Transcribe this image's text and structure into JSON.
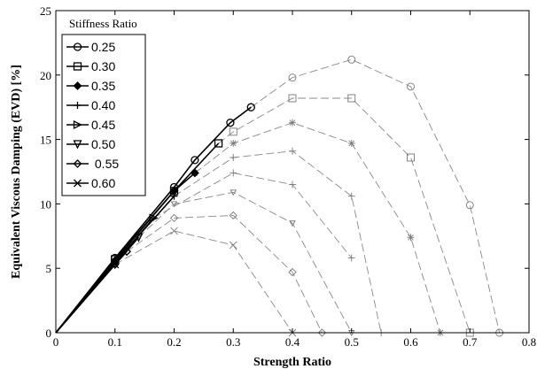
{
  "chart_data": {
    "type": "line",
    "xlabel": "Strength Ratio",
    "ylabel": "Equivalent Viscous Damping  (EVD)  [%]",
    "xlim": [
      0,
      0.8
    ],
    "ylim": [
      0,
      25
    ],
    "xticks": [
      "0",
      "0.1",
      "0.2",
      "0.3",
      "0.4",
      "0.5",
      "0.6",
      "0.7",
      "0.8"
    ],
    "yticks": [
      "0",
      "5",
      "10",
      "15",
      "20",
      "25"
    ],
    "legend_title": "Stiffness Ratio",
    "legend_position": "top-left",
    "series": [
      {
        "name": "0.25",
        "marker": "circle",
        "style": "solid",
        "x": [
          0,
          0.1,
          0.2,
          0.235,
          0.295,
          0.33
        ],
        "y": [
          0,
          5.8,
          11.3,
          13.4,
          16.3,
          17.5
        ]
      },
      {
        "name": "0.30",
        "marker": "square",
        "style": "solid",
        "x": [
          0,
          0.1,
          0.2,
          0.275
        ],
        "y": [
          0,
          5.7,
          11.0,
          14.7
        ]
      },
      {
        "name": "0.35",
        "marker": "diamond-filled",
        "style": "solid",
        "x": [
          0,
          0.1,
          0.2,
          0.235
        ],
        "y": [
          0,
          5.6,
          11.0,
          12.4
        ]
      },
      {
        "name": "0.40",
        "marker": "plus",
        "style": "solid",
        "x": [
          0,
          0.1,
          0.2
        ],
        "y": [
          0,
          5.5,
          10.6
        ]
      },
      {
        "name": "0.45",
        "marker": "triangle-right",
        "style": "solid",
        "x": [
          0,
          0.1,
          0.165
        ],
        "y": [
          0,
          5.4,
          8.9
        ]
      },
      {
        "name": "0.50",
        "marker": "triangle-down",
        "style": "solid",
        "x": [
          0,
          0.1,
          0.14
        ],
        "y": [
          0,
          5.3,
          7.4
        ]
      },
      {
        "name": "0.55",
        "marker": "diamond",
        "style": "solid",
        "x": [
          0,
          0.1,
          0.12
        ],
        "y": [
          0,
          5.3,
          6.3
        ]
      },
      {
        "name": "0.60",
        "marker": "x",
        "style": "solid",
        "x": [
          0,
          0.1
        ],
        "y": [
          0,
          5.3
        ]
      },
      {
        "marker": "circle",
        "style": "dashed",
        "x": [
          0.33,
          0.4,
          0.5,
          0.6,
          0.7,
          0.75
        ],
        "y": [
          17.5,
          19.8,
          21.2,
          19.1,
          9.9,
          0
        ]
      },
      {
        "marker": "square",
        "style": "dashed",
        "x": [
          0.275,
          0.3,
          0.4,
          0.5,
          0.6,
          0.7
        ],
        "y": [
          14.7,
          15.6,
          18.2,
          18.2,
          13.6,
          0
        ]
      },
      {
        "marker": "asterisk",
        "style": "dashed",
        "x": [
          0.235,
          0.3,
          0.4,
          0.5,
          0.6,
          0.65
        ],
        "y": [
          12.4,
          14.7,
          16.3,
          14.7,
          7.4,
          0
        ]
      },
      {
        "marker": "plus",
        "style": "dashed",
        "x": [
          0.2,
          0.3,
          0.4,
          0.5,
          0.55
        ],
        "y": [
          10.6,
          13.6,
          14.1,
          10.6,
          0
        ]
      },
      {
        "marker": "plus",
        "style": "dashed",
        "x": [
          0.165,
          0.3,
          0.4,
          0.5
        ],
        "y": [
          8.9,
          12.4,
          11.5,
          5.8
        ]
      },
      {
        "marker": "triangle-down-small",
        "style": "dashed",
        "x": [
          0.14,
          0.2,
          0.3,
          0.4,
          0.5
        ],
        "y": [
          7.4,
          10.0,
          10.9,
          8.5,
          0
        ]
      },
      {
        "marker": "diamond",
        "style": "dashed",
        "x": [
          0.12,
          0.2,
          0.3,
          0.4,
          0.45
        ],
        "y": [
          6.3,
          8.9,
          9.1,
          4.7,
          0
        ]
      },
      {
        "marker": "x",
        "style": "dashed",
        "x": [
          0.1,
          0.2,
          0.3,
          0.4
        ],
        "y": [
          5.3,
          7.9,
          6.8,
          0
        ]
      }
    ]
  }
}
